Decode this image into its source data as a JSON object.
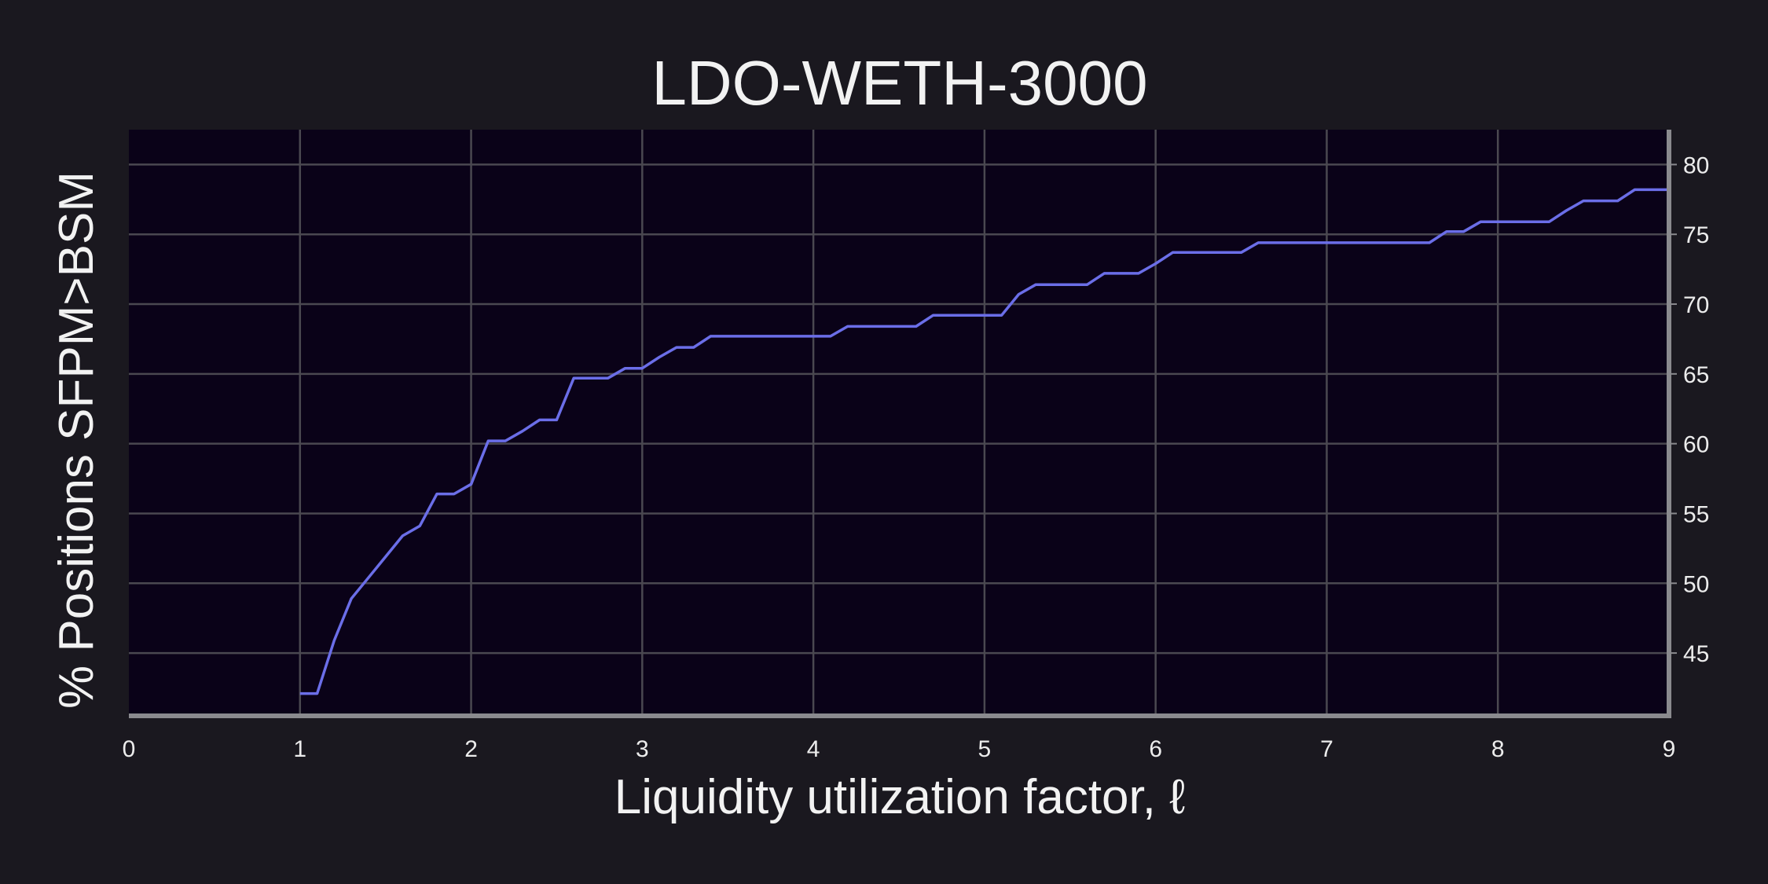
{
  "chart_data": {
    "type": "line",
    "title": "LDO-WETH-3000",
    "xlabel": "Liquidity utilization factor, ℓ",
    "ylabel": "% Positions SFPM>BSM",
    "xlim": [
      0,
      9
    ],
    "ylim": [
      40.5,
      82.5
    ],
    "xticks": [
      0,
      1,
      2,
      3,
      4,
      5,
      6,
      7,
      8,
      9
    ],
    "yticks": [
      45,
      50,
      55,
      60,
      65,
      70,
      75,
      80
    ],
    "y_axis_side": "right",
    "grid": true,
    "colors": {
      "background": "#1a181f",
      "plot_background": "#0a0218",
      "line": "#6b6ee8",
      "grid": "#4a4850",
      "axis": "#8a8a8e",
      "text": "#f2f2f2"
    },
    "series": [
      {
        "name": "LDO-WETH-3000",
        "x": [
          1.0,
          1.1,
          1.2,
          1.3,
          1.4,
          1.5,
          1.6,
          1.7,
          1.8,
          1.9,
          2.0,
          2.1,
          2.2,
          2.3,
          2.4,
          2.5,
          2.6,
          2.7,
          2.8,
          2.9,
          3.0,
          3.1,
          3.2,
          3.3,
          3.4,
          3.5,
          3.6,
          3.7,
          3.8,
          3.9,
          4.0,
          4.1,
          4.2,
          4.3,
          4.4,
          4.5,
          4.6,
          4.7,
          4.8,
          4.9,
          5.0,
          5.1,
          5.2,
          5.3,
          5.4,
          5.5,
          5.6,
          5.7,
          5.8,
          5.9,
          6.0,
          6.1,
          6.2,
          6.3,
          6.4,
          6.5,
          6.6,
          6.7,
          6.8,
          6.9,
          7.0,
          7.1,
          7.2,
          7.3,
          7.4,
          7.5,
          7.6,
          7.7,
          7.8,
          7.9,
          8.0,
          8.1,
          8.2,
          8.3,
          8.4,
          8.5,
          8.6,
          8.7,
          8.8,
          8.9,
          9.0
        ],
        "y": [
          42.1,
          42.1,
          45.9,
          48.9,
          50.4,
          51.9,
          53.4,
          54.1,
          56.4,
          56.4,
          57.1,
          60.2,
          60.2,
          60.9,
          61.7,
          61.7,
          64.7,
          64.7,
          64.7,
          65.4,
          65.4,
          66.2,
          66.9,
          66.9,
          67.7,
          67.7,
          67.7,
          67.7,
          67.7,
          67.7,
          67.7,
          67.7,
          68.4,
          68.4,
          68.4,
          68.4,
          68.4,
          69.2,
          69.2,
          69.2,
          69.2,
          69.2,
          70.7,
          71.4,
          71.4,
          71.4,
          71.4,
          72.2,
          72.2,
          72.2,
          72.9,
          73.7,
          73.7,
          73.7,
          73.7,
          73.7,
          74.4,
          74.4,
          74.4,
          74.4,
          74.4,
          74.4,
          74.4,
          74.4,
          74.4,
          74.4,
          74.4,
          75.2,
          75.2,
          75.9,
          75.9,
          75.9,
          75.9,
          75.9,
          76.7,
          77.4,
          77.4,
          77.4,
          78.2,
          78.2,
          78.2
        ]
      }
    ]
  }
}
